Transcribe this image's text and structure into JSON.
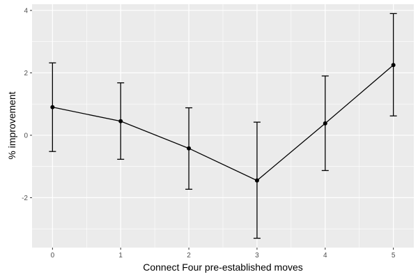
{
  "chart_data": {
    "type": "line",
    "title": "",
    "xlabel": "Connect Four pre-established moves",
    "ylabel": "% improvement",
    "x": [
      0,
      1,
      2,
      3,
      4,
      5
    ],
    "x_tick_labels": [
      "0",
      "1",
      "2",
      "3",
      "4",
      "5"
    ],
    "y_tick_values": [
      -2,
      0,
      2,
      4
    ],
    "y_tick_labels": [
      "-2",
      "0",
      "2",
      "4"
    ],
    "xlim": [
      -0.3,
      5.3
    ],
    "ylim": [
      -3.6,
      4.2
    ],
    "grid": true,
    "legend": "none",
    "series": [
      {
        "values": [
          0.9,
          0.45,
          -0.42,
          -1.45,
          0.38,
          2.25
        ],
        "error_lower": [
          -0.52,
          -0.77,
          -1.73,
          -3.3,
          -1.13,
          0.62
        ],
        "error_upper": [
          2.32,
          1.68,
          0.88,
          0.42,
          1.9,
          3.9
        ]
      }
    ],
    "colors": {
      "panel_background": "#ebebeb",
      "grid": "#ffffff",
      "line": "#000000",
      "tick_label": "#4d4d4d",
      "axis_title": "#000000"
    }
  }
}
